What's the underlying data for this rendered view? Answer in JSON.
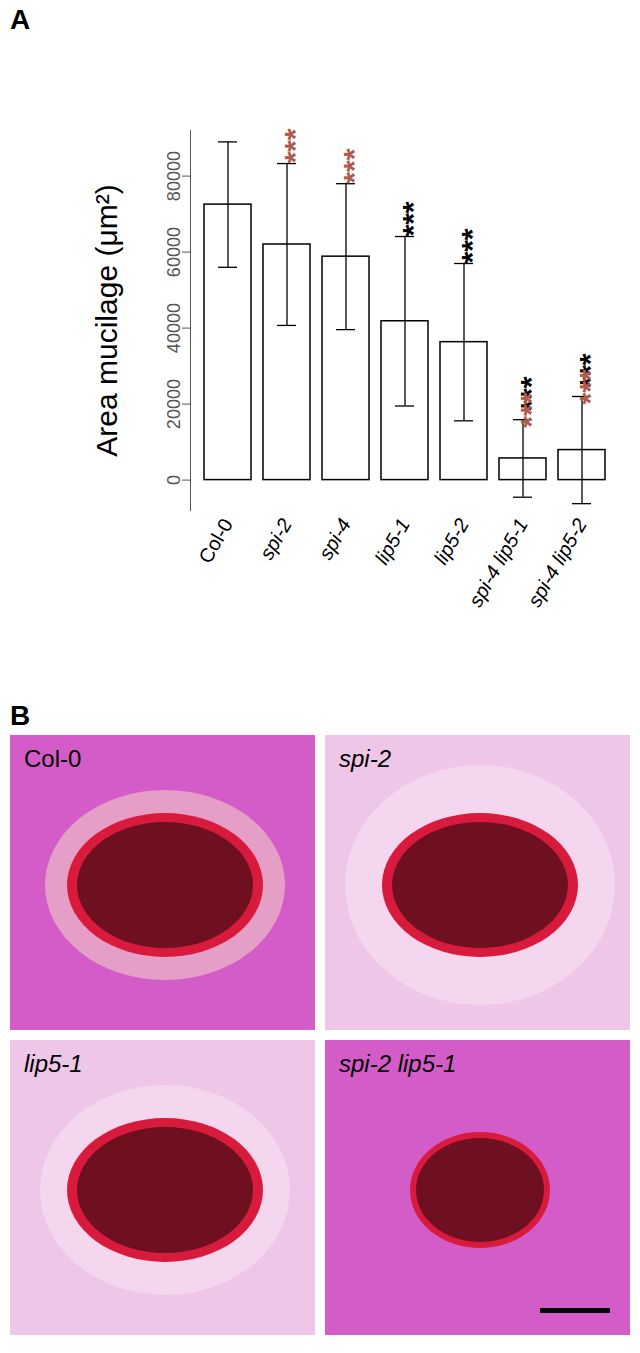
{
  "chart_data": {
    "type": "bar",
    "title": "A",
    "y_label": "Area mucilage (μm²)",
    "categories": [
      "Col-0",
      "spi-2",
      "spi-4",
      "lip5-1",
      "lip5-2",
      "spi-4 lip5-1",
      "spi-4 lip5-2"
    ],
    "values": [
      72500,
      62000,
      58800,
      41800,
      36300,
      5700,
      7900
    ],
    "errors": [
      16500,
      21300,
      19200,
      22300,
      20700,
      10200,
      14100
    ],
    "color": "#ffffff",
    "ylim": [
      -8000,
      92000
    ],
    "yticks": [
      0,
      20000,
      40000,
      60000,
      80000
    ],
    "annotations": [
      {
        "category": "spi-2",
        "text": "***",
        "color": "#b05a4c"
      },
      {
        "category": "spi-4",
        "text": "***",
        "color": "#b05a4c"
      },
      {
        "category": "lip5-1",
        "text": "***",
        "color": "#000000"
      },
      {
        "category": "lip5-2",
        "text": "***",
        "color": "#000000"
      },
      {
        "category": "spi-4 lip5-1",
        "text": "***",
        "color": "#000000"
      },
      {
        "category": "spi-4 lip5-1",
        "text": "***",
        "color": "#b05a4c"
      },
      {
        "category": "spi-4 lip5-2",
        "text": "***",
        "color": "#000000"
      },
      {
        "category": "spi-4 lip5-2",
        "text": "***",
        "color": "#b05a4c"
      }
    ]
  },
  "panel_b": {
    "label": "B",
    "panels": [
      "Col-0",
      "spi-2",
      "lip5-1",
      "spi-2 lip5-1"
    ]
  }
}
